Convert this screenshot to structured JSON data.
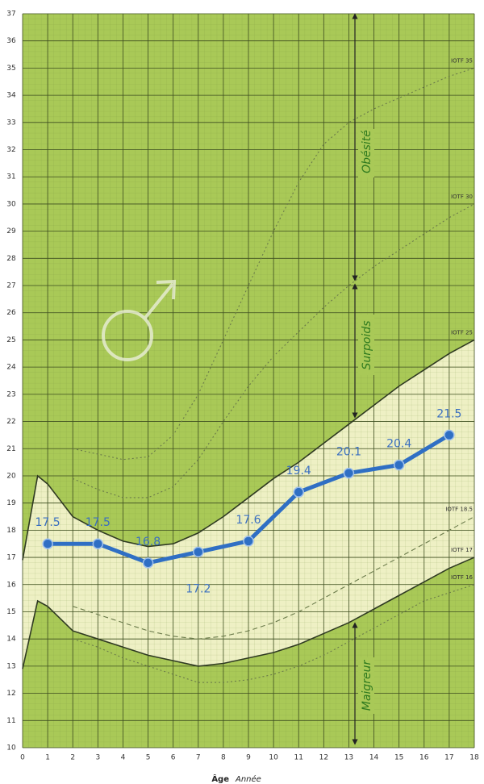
{
  "chart_data": {
    "type": "line",
    "x_label": "Âge",
    "x_unit_label": "Année",
    "x": [
      1,
      3,
      5,
      7,
      9,
      11,
      13,
      15,
      17
    ],
    "series": [
      {
        "color": "#2f6fc4",
        "values": [
          17.5,
          17.5,
          16.8,
          17.2,
          17.6,
          19.4,
          20.1,
          20.4,
          21.5
        ]
      }
    ],
    "xlim": [
      0,
      18
    ],
    "xticks": [
      0,
      1,
      2,
      3,
      4,
      5,
      6,
      7,
      8,
      9,
      10,
      11,
      12,
      13,
      14,
      15,
      16,
      17,
      18
    ],
    "ylim": [
      10,
      37
    ],
    "yticks": [
      10,
      11,
      12,
      13,
      14,
      15,
      16,
      17,
      18,
      19,
      20,
      21,
      22,
      23,
      24,
      25,
      26,
      27,
      28,
      29,
      30,
      31,
      32,
      33,
      34,
      35,
      36,
      37
    ],
    "grid": true,
    "annotations": [
      "Obésité",
      "Surpoids",
      "Maigreur"
    ],
    "reference_curves": [
      {
        "name": "IOTF 35",
        "style": "dotted",
        "x": [
          2,
          3,
          4,
          5,
          6,
          7,
          8,
          9,
          10,
          11,
          12,
          13,
          14,
          15,
          16,
          17,
          18
        ],
        "values": [
          21.0,
          20.8,
          20.6,
          20.7,
          21.5,
          23.0,
          25.0,
          27.0,
          29.0,
          30.8,
          32.2,
          33.0,
          33.5,
          33.9,
          34.3,
          34.7,
          35.0
        ]
      },
      {
        "name": "IOTF 30",
        "style": "dotted",
        "x": [
          2,
          3,
          4,
          5,
          6,
          7,
          8,
          9,
          10,
          11,
          12,
          13,
          14,
          15,
          16,
          17,
          18
        ],
        "values": [
          19.9,
          19.5,
          19.2,
          19.2,
          19.6,
          20.6,
          22.0,
          23.3,
          24.4,
          25.3,
          26.2,
          27.0,
          27.7,
          28.3,
          28.9,
          29.5,
          30.0
        ]
      },
      {
        "name": "IOTF 25",
        "style": "solid",
        "x": [
          0,
          0.6,
          1,
          2,
          3,
          4,
          5,
          6,
          7,
          8,
          9,
          10,
          11,
          12,
          13,
          14,
          15,
          16,
          17,
          18
        ],
        "values": [
          16.9,
          20.0,
          19.7,
          18.5,
          18.0,
          17.6,
          17.4,
          17.5,
          17.9,
          18.5,
          19.2,
          19.9,
          20.5,
          21.2,
          21.9,
          22.6,
          23.3,
          23.9,
          24.5,
          25.0
        ]
      },
      {
        "name": "IOTF 18.5",
        "style": "dashed",
        "x": [
          2,
          3,
          4,
          5,
          6,
          7,
          8,
          9,
          10,
          11,
          12,
          13,
          14,
          15,
          16,
          17,
          18
        ],
        "values": [
          15.2,
          14.9,
          14.6,
          14.3,
          14.1,
          14.0,
          14.1,
          14.3,
          14.6,
          15.0,
          15.5,
          16.0,
          16.5,
          17.0,
          17.5,
          18.0,
          18.5
        ]
      },
      {
        "name": "IOTF 17",
        "style": "solid",
        "x": [
          0,
          0.6,
          1,
          2,
          3,
          4,
          5,
          6,
          7,
          8,
          9,
          10,
          11,
          12,
          13,
          14,
          15,
          16,
          17,
          18
        ],
        "values": [
          12.9,
          15.4,
          15.2,
          14.3,
          14.0,
          13.7,
          13.4,
          13.2,
          13.0,
          13.1,
          13.3,
          13.5,
          13.8,
          14.2,
          14.6,
          15.1,
          15.6,
          16.1,
          16.6,
          17.0
        ]
      },
      {
        "name": "IOTF 16",
        "style": "dotted",
        "x": [
          2,
          3,
          4,
          5,
          6,
          7,
          8,
          9,
          10,
          11,
          12,
          13,
          14,
          15,
          16,
          17,
          18
        ],
        "values": [
          14.0,
          13.7,
          13.3,
          13.0,
          12.7,
          12.4,
          12.4,
          12.5,
          12.7,
          13.0,
          13.4,
          13.9,
          14.4,
          14.9,
          15.4,
          15.7,
          16.0
        ]
      }
    ]
  }
}
